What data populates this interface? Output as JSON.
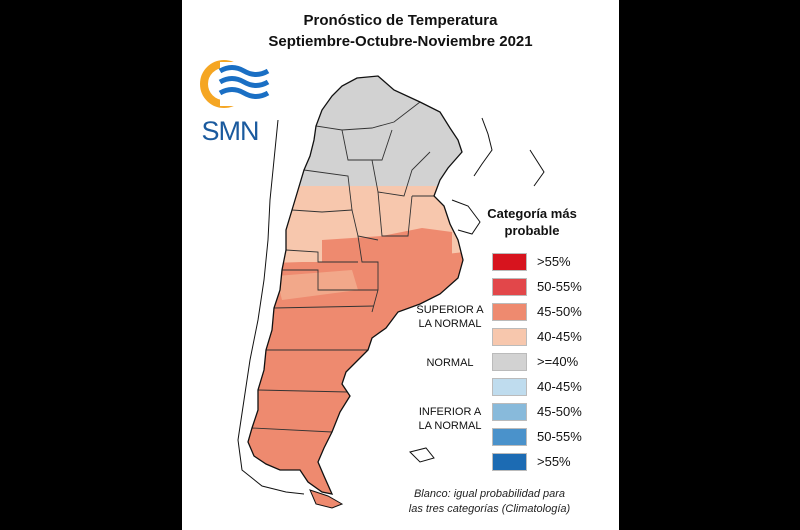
{
  "title": {
    "line1": "Pronóstico de Temperatura",
    "line2": "Septiembre-Octubre-Noviembre 2021"
  },
  "logo": {
    "text": "SMN",
    "icon": "smn-sun-wave-logo",
    "colors": [
      "#f5a623",
      "#1a6fc4"
    ]
  },
  "legend": {
    "title_line1": "Categoría más",
    "title_line2": "probable",
    "items": [
      {
        "label": ">55%",
        "color": "#d7141e",
        "category": "superior"
      },
      {
        "label": "50-55%",
        "color": "#e2474a",
        "category": "superior"
      },
      {
        "label": "45-50%",
        "color": "#ee8a6f",
        "category": "superior"
      },
      {
        "label": "40-45%",
        "color": "#f7c7ad",
        "category": "superior"
      },
      {
        "label": ">=40%",
        "color": "#d2d2d2",
        "category": "normal"
      },
      {
        "label": "40-45%",
        "color": "#bfdcee",
        "category": "inferior"
      },
      {
        "label": "45-50%",
        "color": "#88badb",
        "category": "inferior"
      },
      {
        "label": "50-55%",
        "color": "#4a92cb",
        "category": "inferior"
      },
      {
        "label": ">55%",
        "color": "#1c6bb3",
        "category": "inferior"
      }
    ],
    "groups": {
      "superior_line1": "SUPERIOR A",
      "superior_line2": "LA NORMAL",
      "normal": "NORMAL",
      "inferior_line1": "INFERIOR A",
      "inferior_line2": "LA NORMAL"
    }
  },
  "map_colors": {
    "normal": "#d2d2d2",
    "light_superior": "#f7c7ad",
    "superior": "#ee8a6f",
    "border": "#333333"
  },
  "note": {
    "line1": "Blanco: igual probabilidad para",
    "line2": "las tres categorías (Climatología)"
  }
}
